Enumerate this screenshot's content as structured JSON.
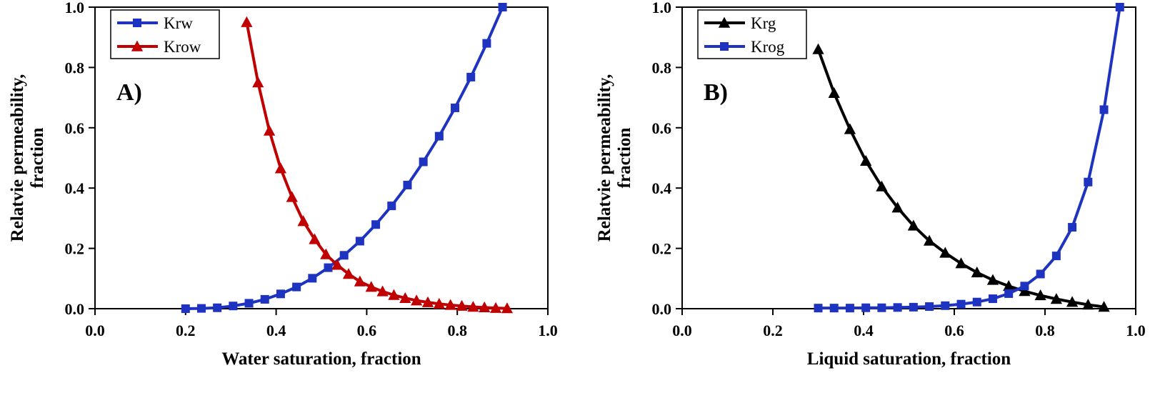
{
  "figure": {
    "background": "#ffffff",
    "panel_count": 2
  },
  "chart_data": [
    {
      "type": "line",
      "panel_label": "A)",
      "xlabel": "Water saturation, fraction",
      "ylabel_lines": [
        "Relatvie permeability,",
        "fraction"
      ],
      "xlim": [
        0.0,
        1.0
      ],
      "ylim": [
        0.0,
        1.0
      ],
      "xticks": [
        0.0,
        0.2,
        0.4,
        0.6,
        0.8,
        1.0
      ],
      "yticks": [
        0.0,
        0.2,
        0.4,
        0.6,
        0.8,
        1.0
      ],
      "grid": false,
      "legend_position": "top-left",
      "axis_color": "#000000",
      "series": [
        {
          "name": "Krw",
          "color": "#1e33c0",
          "marker": "square",
          "x": [
            0.2,
            0.235,
            0.27,
            0.305,
            0.34,
            0.375,
            0.41,
            0.445,
            0.48,
            0.515,
            0.55,
            0.585,
            0.62,
            0.655,
            0.69,
            0.725,
            0.76,
            0.795,
            0.83,
            0.865,
            0.9
          ],
          "y": [
            0.0,
            0.001,
            0.003,
            0.009,
            0.018,
            0.031,
            0.049,
            0.072,
            0.101,
            0.136,
            0.177,
            0.224,
            0.279,
            0.341,
            0.41,
            0.487,
            0.572,
            0.666,
            0.768,
            0.88,
            1.0
          ]
        },
        {
          "name": "Krow",
          "color": "#c00000",
          "marker": "triangle",
          "x": [
            0.335,
            0.36,
            0.385,
            0.41,
            0.435,
            0.46,
            0.485,
            0.51,
            0.535,
            0.56,
            0.585,
            0.61,
            0.635,
            0.66,
            0.685,
            0.71,
            0.735,
            0.76,
            0.785,
            0.81,
            0.835,
            0.86,
            0.885,
            0.91
          ],
          "y": [
            0.95,
            0.75,
            0.59,
            0.465,
            0.37,
            0.29,
            0.23,
            0.18,
            0.145,
            0.115,
            0.09,
            0.072,
            0.057,
            0.045,
            0.035,
            0.027,
            0.021,
            0.016,
            0.012,
            0.009,
            0.006,
            0.004,
            0.002,
            0.001
          ]
        }
      ]
    },
    {
      "type": "line",
      "panel_label": "B)",
      "xlabel": "Liquid saturation, fraction",
      "ylabel_lines": [
        "Relatvie permeability,",
        "fraction"
      ],
      "xlim": [
        0.0,
        1.0
      ],
      "ylim": [
        0.0,
        1.0
      ],
      "xticks": [
        0.0,
        0.2,
        0.4,
        0.6,
        0.8,
        1.0
      ],
      "yticks": [
        0.0,
        0.2,
        0.4,
        0.6,
        0.8,
        1.0
      ],
      "grid": false,
      "legend_position": "top-left",
      "axis_color": "#000000",
      "series": [
        {
          "name": "Krg",
          "color": "#000000",
          "marker": "triangle",
          "x": [
            0.3,
            0.335,
            0.37,
            0.405,
            0.44,
            0.475,
            0.51,
            0.545,
            0.58,
            0.615,
            0.65,
            0.685,
            0.72,
            0.755,
            0.79,
            0.825,
            0.86,
            0.895,
            0.93
          ],
          "y": [
            0.86,
            0.715,
            0.595,
            0.49,
            0.405,
            0.335,
            0.275,
            0.225,
            0.185,
            0.15,
            0.12,
            0.095,
            0.075,
            0.058,
            0.044,
            0.032,
            0.022,
            0.013,
            0.006
          ]
        },
        {
          "name": "Krog",
          "color": "#1e33c0",
          "marker": "square",
          "x": [
            0.3,
            0.335,
            0.37,
            0.405,
            0.44,
            0.475,
            0.51,
            0.545,
            0.58,
            0.615,
            0.65,
            0.685,
            0.72,
            0.755,
            0.79,
            0.825,
            0.86,
            0.895,
            0.93,
            0.965
          ],
          "y": [
            0.002,
            0.002,
            0.002,
            0.003,
            0.003,
            0.004,
            0.005,
            0.007,
            0.01,
            0.015,
            0.022,
            0.033,
            0.05,
            0.075,
            0.115,
            0.175,
            0.27,
            0.42,
            0.66,
            1.0
          ]
        }
      ]
    }
  ]
}
